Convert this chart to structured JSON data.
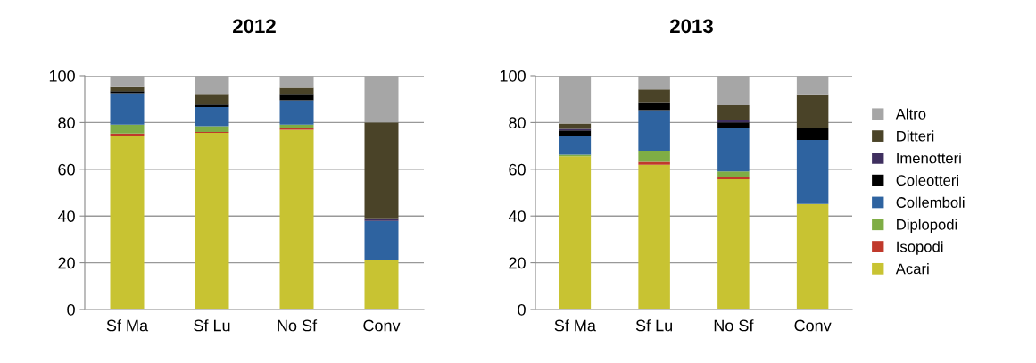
{
  "chart_data": [
    {
      "type": "bar",
      "stacked": true,
      "title": "2012",
      "categories": [
        "Sf Ma",
        "Sf Lu",
        "No Sf",
        "Conv"
      ],
      "ylim": [
        0,
        100
      ],
      "yticks": [
        0,
        20,
        40,
        60,
        80,
        100
      ],
      "grid": "y",
      "legend": false,
      "series": [
        {
          "color": "#c8c332",
          "values": [
            74,
            75.6,
            76.9,
            21.3
          ]
        },
        {
          "color": "#c0392b",
          "values": [
            1.3,
            0.4,
            0.9,
            0
          ]
        },
        {
          "color": "#7fad45",
          "values": [
            3.8,
            2.4,
            1.3,
            0
          ]
        },
        {
          "color": "#2e63a0",
          "values": [
            13.5,
            8.2,
            10.4,
            16.6
          ]
        },
        {
          "color": "#000000",
          "values": [
            0.8,
            1.1,
            2.8,
            0
          ]
        },
        {
          "color": "#3f2f5f",
          "values": [
            0,
            0,
            0,
            1.1
          ]
        },
        {
          "color": "#4a4328",
          "values": [
            2.1,
            4.6,
            2.5,
            41.1
          ]
        },
        {
          "color": "#a6a6a6",
          "values": [
            4.5,
            7.7,
            5.2,
            19.9
          ]
        }
      ]
    },
    {
      "type": "bar",
      "stacked": true,
      "title": "2013",
      "categories": [
        "Sf Ma",
        "Sf Lu",
        "No Sf",
        "Conv"
      ],
      "ylim": [
        0,
        100
      ],
      "yticks": [
        0,
        20,
        40,
        60,
        80,
        100
      ],
      "grid": "y",
      "legend": "right",
      "series": [
        {
          "name": "Acari",
          "color": "#c8c332",
          "values": [
            65.6,
            61.9,
            55.7,
            45.1
          ]
        },
        {
          "name": "Isopodi",
          "color": "#c0392b",
          "values": [
            0,
            1.3,
            0.8,
            0
          ]
        },
        {
          "name": "Diplopodi",
          "color": "#7fad45",
          "values": [
            0.6,
            4.7,
            2.6,
            0
          ]
        },
        {
          "name": "Collemboli",
          "color": "#2e63a0",
          "values": [
            8.2,
            17.4,
            18.6,
            27.4
          ]
        },
        {
          "name": "Coleotteri",
          "color": "#000000",
          "values": [
            2.2,
            3.4,
            2.4,
            5.0
          ]
        },
        {
          "name": "Imenotteri",
          "color": "#3f2f5f",
          "values": [
            0.7,
            0,
            0.8,
            0
          ]
        },
        {
          "name": "Ditteri",
          "color": "#4a4328",
          "values": [
            2.3,
            5.5,
            6.5,
            14.6
          ]
        },
        {
          "name": "Altro",
          "color": "#a6a6a6",
          "values": [
            20.4,
            5.8,
            12.6,
            7.9
          ]
        }
      ]
    }
  ]
}
